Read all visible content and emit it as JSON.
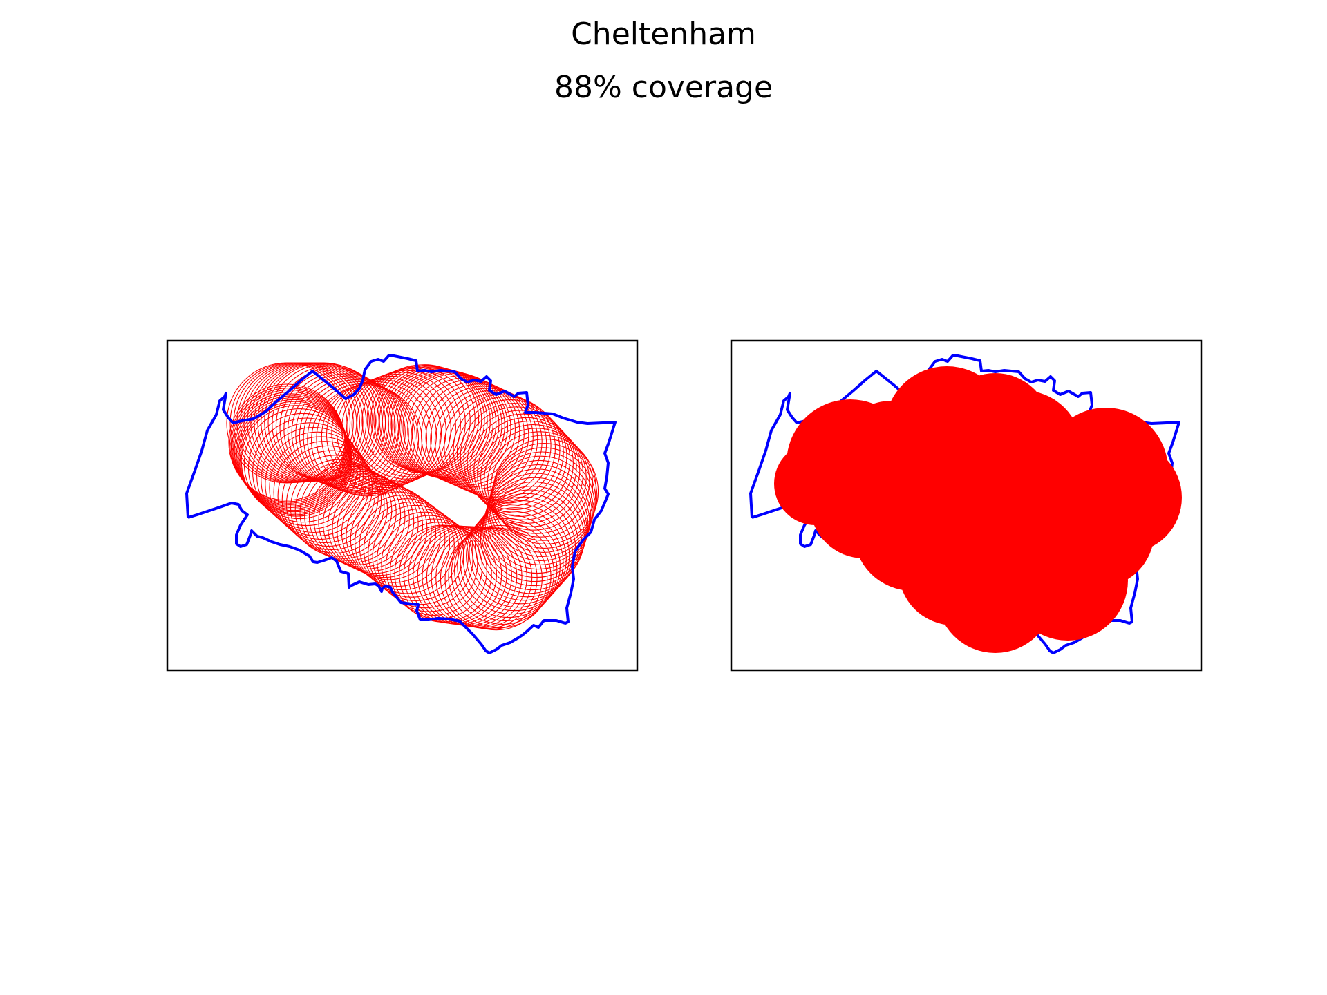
{
  "figure": {
    "title": "Cheltenham",
    "subtitle": "88% coverage"
  },
  "colors": {
    "boundary": "#0000ff",
    "coverage": "#ff0000",
    "frame": "#000000",
    "background": "#ffffff"
  },
  "panels": [
    {
      "id": "left",
      "style": "outline-circles"
    },
    {
      "id": "right",
      "style": "filled-union"
    }
  ],
  "chart_data": {
    "type": "map",
    "region": "Cheltenham",
    "coverage_percent": 88,
    "axes_visible": false,
    "legend": "none"
  }
}
